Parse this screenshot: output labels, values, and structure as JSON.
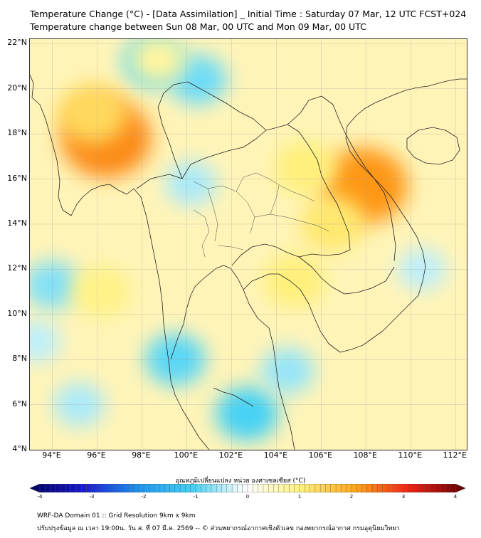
{
  "header": {
    "title_line1": "Temperature Change (°C) - [Data Assimilation] _ Initial Time : Saturday 07 Mar, 12 UTC FCST+024",
    "title_line2": "Temperature change between Sun 08 Mar, 00 UTC and Mon 09 Mar, 00 UTC"
  },
  "map": {
    "lat_labels": [
      "22°N",
      "20°N",
      "18°N",
      "16°N",
      "14°N",
      "12°N",
      "10°N",
      "8°N",
      "6°N",
      "4°N"
    ],
    "lon_labels": [
      "94°E",
      "96°E",
      "98°E",
      "100°E",
      "102°E",
      "104°E",
      "106°E",
      "108°E",
      "110°E",
      "112°E"
    ],
    "lat_values": [
      22,
      20,
      18,
      16,
      14,
      12,
      10,
      8,
      6,
      4
    ],
    "lon_values": [
      94,
      96,
      98,
      100,
      102,
      104,
      106,
      108,
      110,
      112
    ],
    "extent": {
      "lon_min": 93,
      "lon_max": 112.5,
      "lat_min": 4,
      "lat_max": 22.2
    },
    "background_color": "#fff4b8",
    "warm_spots": [
      {
        "lon": 96.4,
        "lat": 17.8,
        "value": 2.2
      },
      {
        "lon": 95.8,
        "lat": 18.9,
        "value": 1.3
      },
      {
        "lon": 107.9,
        "lat": 15.7,
        "value": 2.1
      },
      {
        "lon": 106.5,
        "lat": 14.0,
        "value": 1.1
      },
      {
        "lon": 105.3,
        "lat": 16.5,
        "value": 1.0
      },
      {
        "lon": 104.8,
        "lat": 11.5,
        "value": 1.0
      },
      {
        "lon": 98.7,
        "lat": 21.3,
        "value": 0.7
      },
      {
        "lon": 96.2,
        "lat": 11.0,
        "value": 0.9
      }
    ],
    "cool_spots": [
      {
        "lon": 98.5,
        "lat": 21.2,
        "value": -0.9
      },
      {
        "lon": 100.5,
        "lat": 20.4,
        "value": -0.8
      },
      {
        "lon": 94.0,
        "lat": 11.3,
        "value": -0.7
      },
      {
        "lon": 99.5,
        "lat": 8.0,
        "value": -0.9
      },
      {
        "lon": 102.7,
        "lat": 5.6,
        "value": -1.0
      },
      {
        "lon": 104.5,
        "lat": 7.5,
        "value": -0.6
      },
      {
        "lon": 95.2,
        "lat": 6.0,
        "value": -0.5
      },
      {
        "lon": 100.2,
        "lat": 15.8,
        "value": -0.5
      },
      {
        "lon": 110.5,
        "lat": 12.0,
        "value": -0.4
      },
      {
        "lon": 93.3,
        "lat": 8.8,
        "value": -0.4
      }
    ]
  },
  "colorbar": {
    "title": "อุณหภูมิเปลี่ยนแปลง หน่วย องศาเซลเซียส (°C)",
    "labels": [
      "-4",
      "-3",
      "-2",
      "-1",
      "0",
      "1",
      "2",
      "3",
      "4"
    ],
    "min": -4,
    "max": 4,
    "stops": [
      {
        "v": -4,
        "c": "#000060"
      },
      {
        "v": -3,
        "c": "#1a1ad0"
      },
      {
        "v": -2,
        "c": "#1e96f0"
      },
      {
        "v": -1,
        "c": "#46d2f5"
      },
      {
        "v": -0.2,
        "c": "#e6f8fb"
      },
      {
        "v": 0,
        "c": "#ffffff"
      },
      {
        "v": 0.2,
        "c": "#fffce0"
      },
      {
        "v": 1,
        "c": "#fff07a"
      },
      {
        "v": 2,
        "c": "#ffa41a"
      },
      {
        "v": 3,
        "c": "#f01e14"
      },
      {
        "v": 4,
        "c": "#5e0000"
      }
    ]
  },
  "footer": {
    "line1": "WRF-DA Domain 01 :: Grid Resolution 9km x 9km",
    "line2": "ปรับปรุงข้อมูล ณ เวลา 19:00น. วัน ส. ที่ 07 มี.ค. 2569 -- © ส่วนพยากรณ์อากาศเชิงตัวเลข กองพยากรณ์อากาศ กรมอุตุนิยมวิทยา"
  }
}
